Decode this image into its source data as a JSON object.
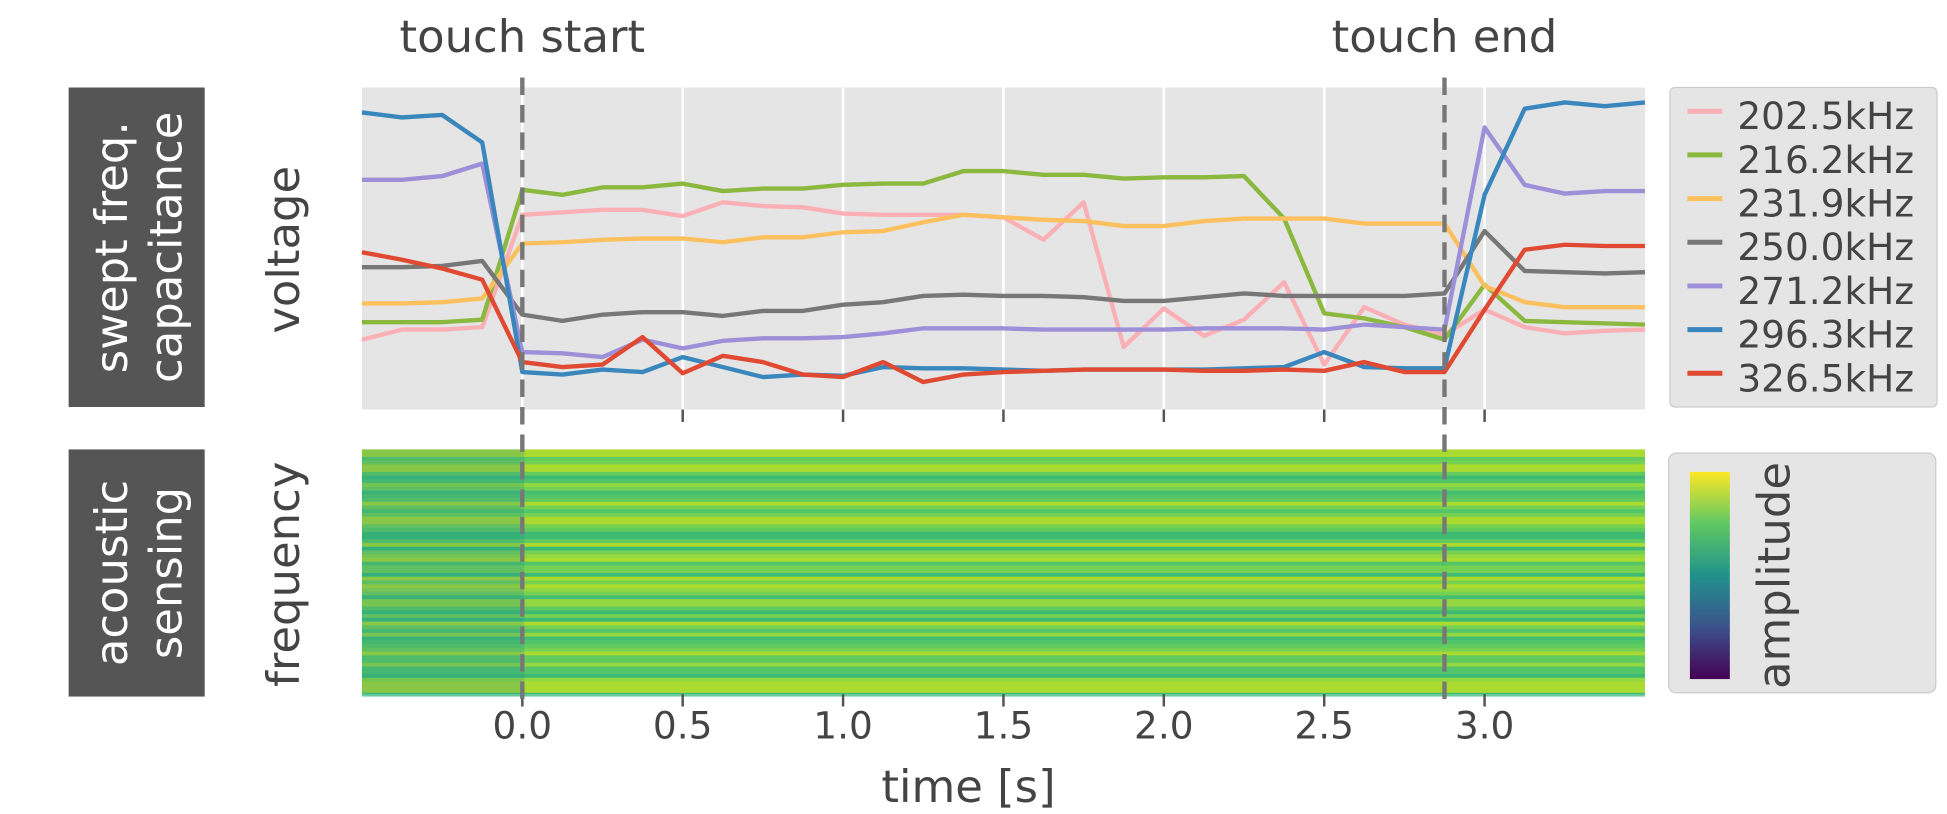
{
  "chart_data": {
    "type": "line",
    "x_label": "time [s]",
    "y_label": "voltage",
    "panel_labels": [
      "swept freq.",
      "capacitance",
      "acoustic",
      "sensing"
    ],
    "spectrogram": {
      "y_label": "frequency",
      "colorbar_label": "amplitude"
    },
    "annotations": [
      {
        "text": "touch start",
        "x": 0
      },
      {
        "text": "touch end",
        "x": 2.875
      }
    ],
    "xlim": [
      -0.5,
      3.5
    ],
    "ylim": [
      0,
      258
    ],
    "xticks": [
      {
        "value": 0,
        "label": "0.0"
      },
      {
        "value": 0.5,
        "label": "0.5"
      },
      {
        "value": 1,
        "label": "1.0"
      },
      {
        "value": 1.5,
        "label": "1.5"
      },
      {
        "value": 2,
        "label": "2.0"
      },
      {
        "value": 2.5,
        "label": "2.5"
      },
      {
        "value": 3,
        "label": "3.0"
      }
    ],
    "grid": true,
    "legend": "outside-right",
    "x": [
      -0.5,
      -0.375,
      -0.25,
      -0.125,
      0,
      0.125,
      0.25,
      0.375,
      0.5,
      0.625,
      0.75,
      0.875,
      1,
      1.125,
      1.25,
      1.375,
      1.5,
      1.625,
      1.75,
      1.875,
      2,
      2.125,
      2.25,
      2.375,
      2.5,
      2.625,
      2.75,
      2.875,
      3,
      3.125,
      3.25,
      3.375,
      3.5
    ],
    "series": [
      {
        "name": "202.5kHz",
        "color": "#fbb0b6",
        "values": [
          56,
          64,
          64,
          66,
          156,
          158,
          160,
          160,
          155,
          166,
          163,
          162,
          157,
          156,
          156,
          156,
          154,
          136,
          166,
          50,
          81,
          59,
          72,
          102,
          36,
          82,
          68,
          60,
          80,
          66,
          61,
          63,
          64
        ]
      },
      {
        "name": "216.2kHz",
        "color": "#8bb83f",
        "values": [
          70,
          70,
          70,
          72,
          176,
          172,
          178,
          178,
          181,
          175,
          177,
          177,
          180,
          181,
          181,
          191,
          191,
          188,
          188,
          185,
          186,
          186,
          187,
          153,
          77,
          73,
          66,
          56,
          100,
          71,
          70,
          69,
          68
        ]
      },
      {
        "name": "231.9kHz",
        "color": "#fcc05e",
        "values": [
          85,
          85,
          86,
          89,
          133,
          134,
          136,
          137,
          137,
          134,
          138,
          138,
          142,
          143,
          150,
          156,
          154,
          152,
          151,
          147,
          147,
          151,
          153,
          153,
          153,
          149,
          149,
          149,
          99,
          86,
          82,
          82,
          82
        ]
      },
      {
        "name": "250.0kHz",
        "color": "#777777",
        "values": [
          114,
          114,
          115,
          119,
          76,
          71,
          76,
          78,
          78,
          75,
          79,
          79,
          84,
          86,
          91,
          92,
          91,
          91,
          90,
          87,
          87,
          90,
          93,
          91,
          91,
          91,
          91,
          93,
          143,
          111,
          110,
          109,
          110
        ]
      },
      {
        "name": "271.2kHz",
        "color": "#9d8fd8",
        "values": [
          184,
          184,
          187,
          197,
          46,
          45,
          42,
          56,
          49,
          55,
          57,
          57,
          58,
          61,
          65,
          65,
          65,
          64,
          64,
          64,
          64,
          65,
          65,
          65,
          64,
          68,
          66,
          64,
          226,
          180,
          173,
          175,
          175
        ]
      },
      {
        "name": "296.3kHz",
        "color": "#3a87bd",
        "values": [
          238,
          234,
          236,
          214,
          30,
          28,
          32,
          30,
          42,
          34,
          26,
          28,
          27,
          34,
          33,
          33,
          32,
          31,
          32,
          32,
          32,
          32,
          33,
          34,
          46,
          34,
          33,
          33,
          172,
          241,
          246,
          243,
          246
        ]
      },
      {
        "name": "326.5kHz",
        "color": "#e04a33",
        "values": [
          126,
          120,
          113,
          104,
          38,
          34,
          36,
          58,
          29,
          43,
          38,
          28,
          26,
          38,
          22,
          28,
          30,
          31,
          32,
          32,
          32,
          31,
          31,
          32,
          31,
          38,
          30,
          30,
          80,
          128,
          132,
          131,
          131
        ]
      }
    ]
  }
}
